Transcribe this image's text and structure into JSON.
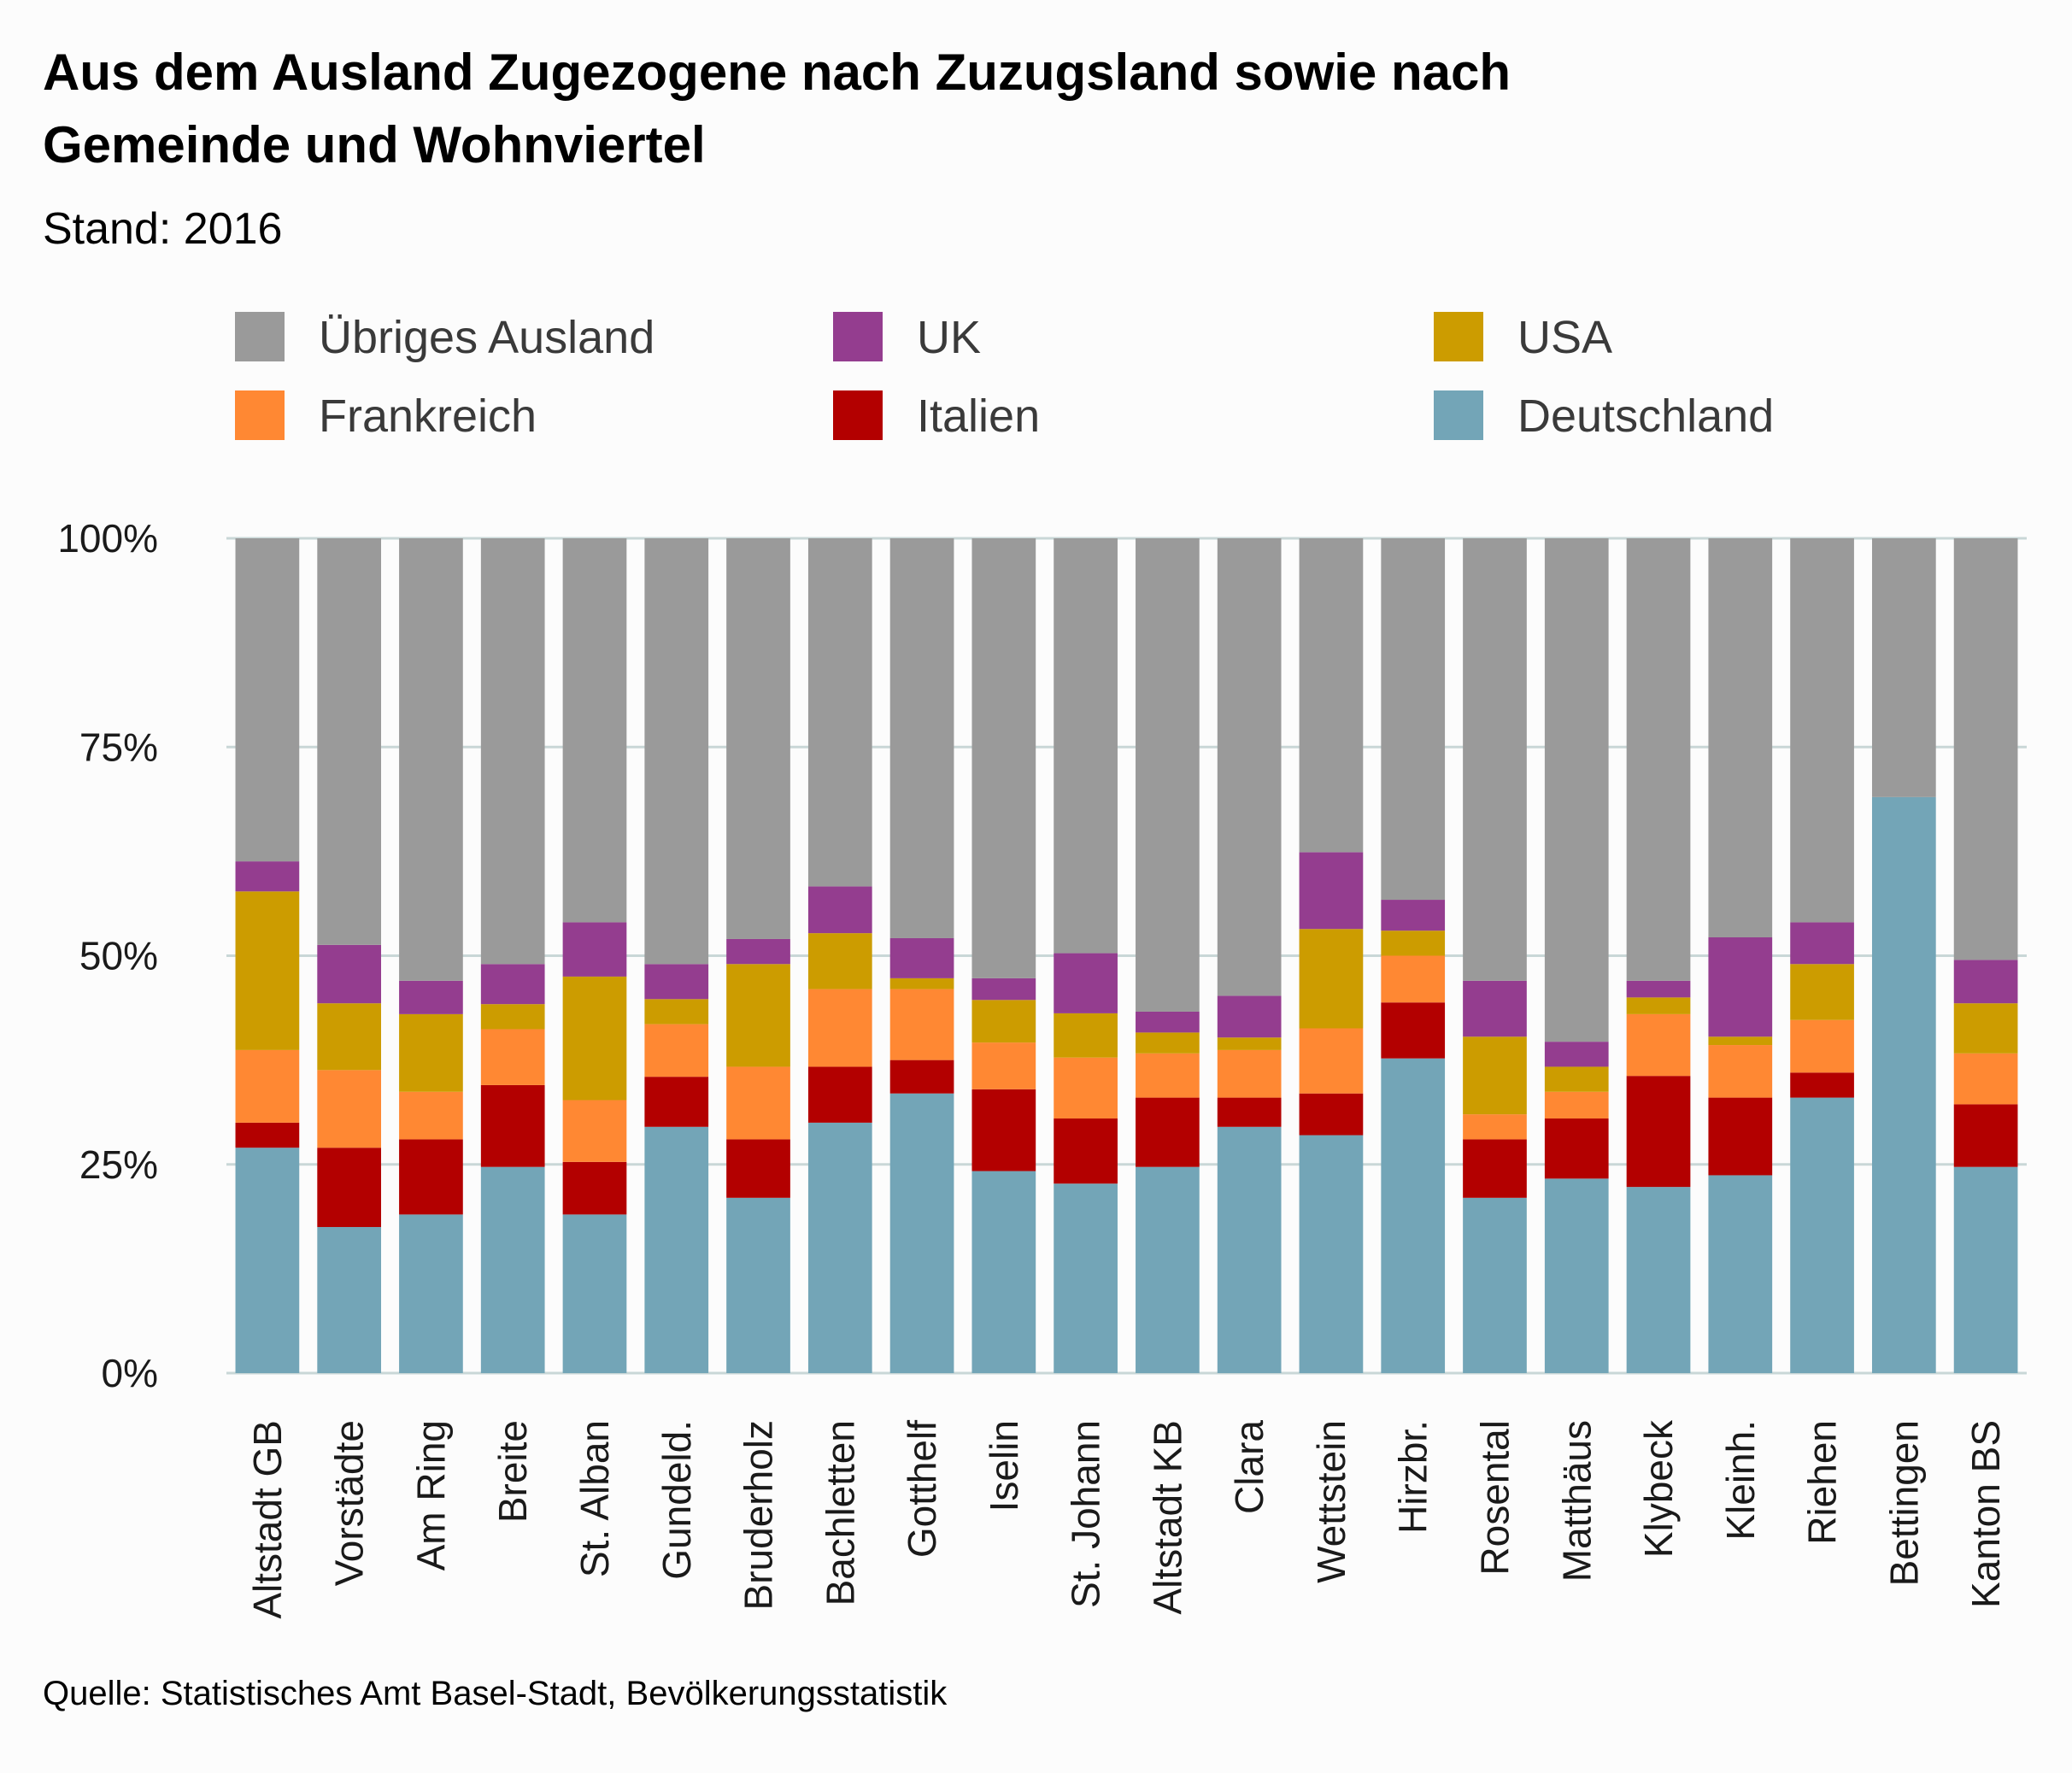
{
  "chart_data": {
    "type": "bar",
    "stacked": true,
    "title_lines": [
      "Aus dem Ausland Zugezogene nach Zuzugsland sowie nach",
      "Gemeinde und Wohnviertel"
    ],
    "subtitle": "Stand: 2016",
    "source": "Quelle: Statistisches Amt Basel-Stadt, Bevölkerungsstatistik",
    "xlabel": "",
    "ylabel": "",
    "ylim": [
      0,
      100
    ],
    "yticks": [
      0,
      25,
      50,
      75,
      100
    ],
    "ytick_labels": [
      "0%",
      "25%",
      "50%",
      "75%",
      "100%"
    ],
    "grid": true,
    "legend_position": "top",
    "categories": [
      "Altstadt GB",
      "Vorstädte",
      "Am Ring",
      "Breite",
      "St. Alban",
      "Gundeld.",
      "Bruderholz",
      "Bachletten",
      "Gotthelf",
      "Iselin",
      "St. Johann",
      "Altstadt KB",
      "Clara",
      "Wettstein",
      "Hirzbr.",
      "Rosental",
      "Matthäus",
      "Klybeck",
      "Kleinh.",
      "Riehen",
      "Bettingen",
      "Kanton BS"
    ],
    "series": [
      {
        "name": "Deutschland",
        "color": "#73a5b7",
        "values": [
          27,
          17.5,
          19,
          24.7,
          19,
          29.5,
          21,
          30,
          33.5,
          24.2,
          22.7,
          24.7,
          29.5,
          28.5,
          37.7,
          21,
          23.3,
          22.3,
          23.7,
          33,
          69,
          24.7
        ]
      },
      {
        "name": "Italien",
        "color": "#b30000",
        "values": [
          3,
          9.5,
          9,
          9.8,
          6.3,
          6,
          7,
          6.7,
          4,
          9.8,
          7.8,
          8.3,
          3.5,
          5,
          6.7,
          7,
          7.2,
          13.3,
          9.3,
          3,
          0,
          7.5
        ]
      },
      {
        "name": "Frankreich",
        "color": "#ff8833",
        "values": [
          8.7,
          9.3,
          5.7,
          6.7,
          7.4,
          6.3,
          8.7,
          9.3,
          8.5,
          5.6,
          7.3,
          5.3,
          5.7,
          7.8,
          5.6,
          3,
          3.2,
          7.4,
          6.3,
          6.3,
          0,
          6.1
        ]
      },
      {
        "name": "USA",
        "color": "#cc9c00",
        "values": [
          19,
          8,
          9.3,
          3,
          14.8,
          3,
          12.3,
          6.7,
          1.3,
          5.1,
          5.3,
          2.5,
          1.5,
          11.9,
          3,
          9.3,
          3,
          2,
          1,
          6.7,
          0,
          6
        ]
      },
      {
        "name": "UK",
        "color": "#943d8f",
        "values": [
          3.6,
          7,
          4,
          4.8,
          6.5,
          4.2,
          3,
          5.6,
          4.8,
          2.6,
          7.2,
          2.5,
          5,
          9.2,
          3.7,
          6.7,
          3,
          2,
          11.9,
          5,
          0,
          5.2
        ]
      },
      {
        "name": "Übriges Ausland",
        "color": "#9a9a9a",
        "values": [
          38.7,
          48.7,
          53,
          51,
          46,
          51,
          48,
          41.7,
          47.9,
          52.7,
          49.7,
          56.7,
          54.8,
          37.6,
          43.3,
          53,
          60.3,
          53,
          47.8,
          46,
          31,
          50.5
        ]
      }
    ]
  },
  "legend": [
    {
      "name": "Übriges Ausland",
      "color": "#9a9a9a"
    },
    {
      "name": "UK",
      "color": "#943d8f"
    },
    {
      "name": "USA",
      "color": "#cc9c00"
    },
    {
      "name": "Frankreich",
      "color": "#ff8833"
    },
    {
      "name": "Italien",
      "color": "#b30000"
    },
    {
      "name": "Deutschland",
      "color": "#73a5b7"
    }
  ]
}
